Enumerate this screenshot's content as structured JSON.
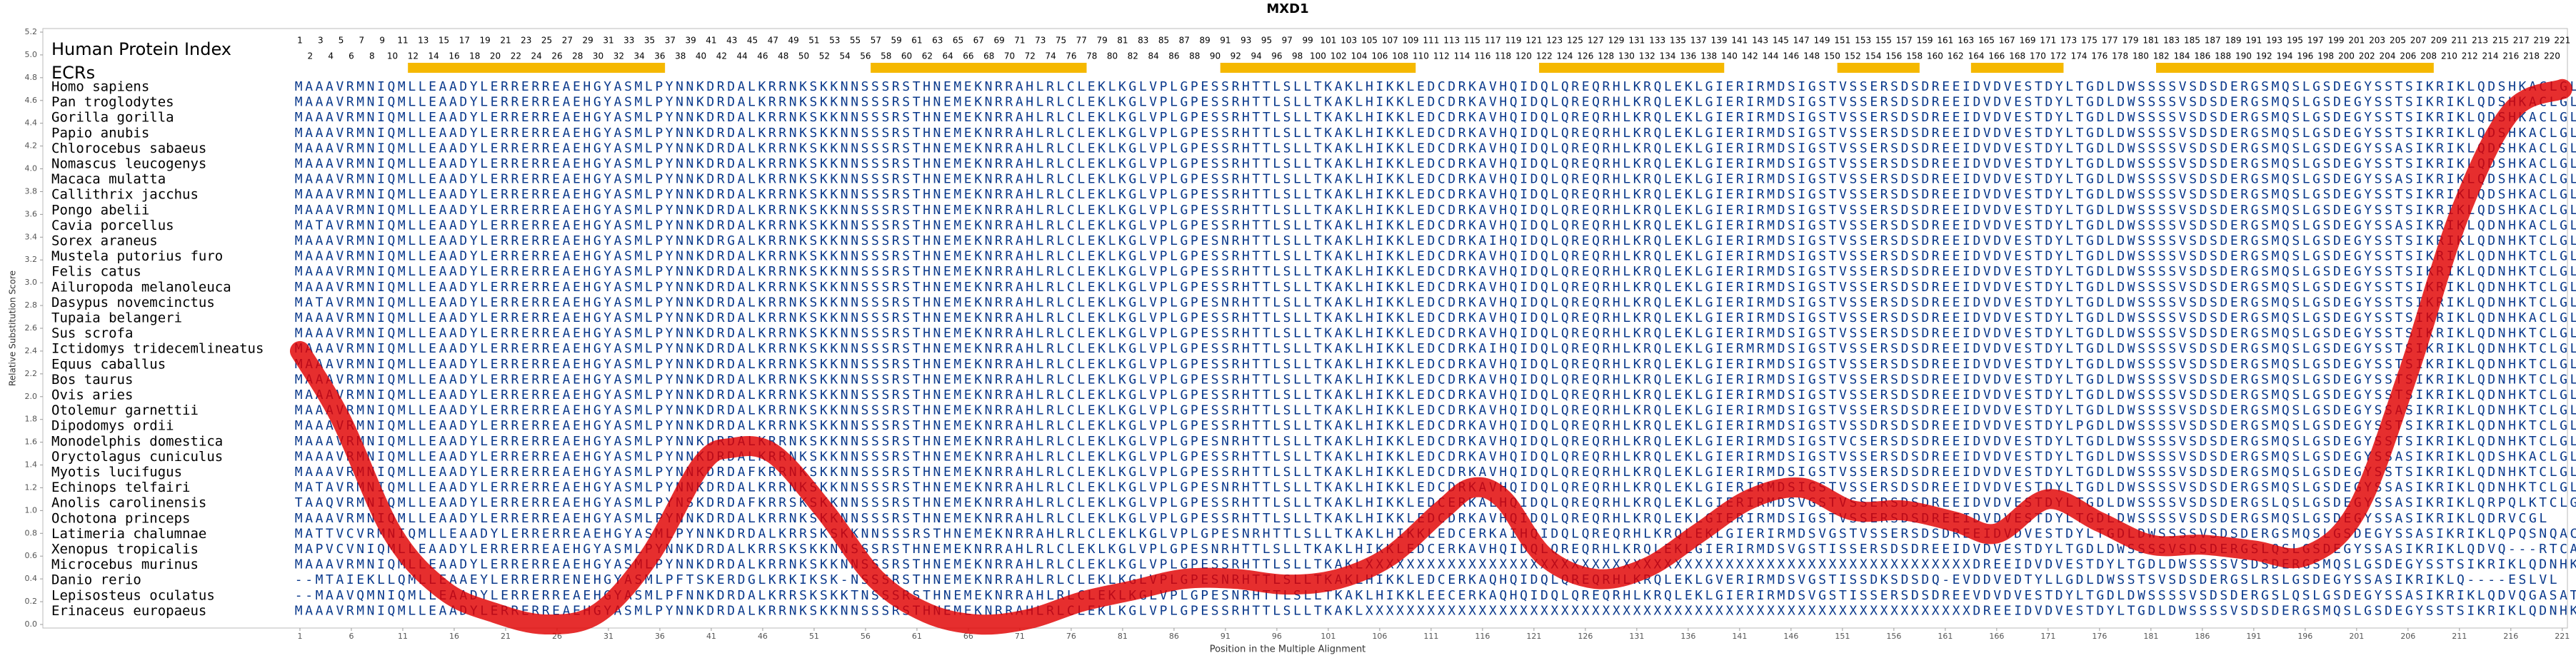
{
  "chart_data": {
    "type": "line",
    "title": "MXD1",
    "x_label": "Position in the Multiple Alignment",
    "y_label": "Relative Substitution Score",
    "xlim": [
      -24,
      221.5
    ],
    "ylim": [
      0,
      5.2
    ],
    "xticks": [
      1,
      6,
      11,
      16,
      21,
      26,
      31,
      36,
      41,
      46,
      51,
      56,
      61,
      66,
      71,
      76,
      81,
      86,
      91,
      96,
      101,
      106,
      111,
      116,
      121,
      126,
      131,
      136,
      141,
      146,
      151,
      156,
      161,
      166,
      171,
      176,
      181,
      186,
      191,
      196,
      201,
      206,
      211,
      216,
      221
    ],
    "yticks": [
      {
        "value": 0,
        "label": "0.0"
      },
      0.2,
      0.4,
      0.6,
      0.8,
      {
        "value": 1,
        "label": "1.0"
      },
      1.2,
      1.4,
      1.6,
      1.8,
      {
        "value": 2,
        "label": "2.0"
      },
      2.2,
      2.4,
      2.6,
      2.8,
      {
        "value": 3,
        "label": "3.0"
      },
      3.2,
      3.4,
      3.6,
      3.8,
      {
        "value": 4,
        "label": "4.0"
      },
      4.2,
      4.4,
      4.6,
      4.8,
      {
        "value": 5,
        "label": "5.0"
      },
      5.2
    ],
    "x": [
      1,
      5,
      10,
      15,
      20,
      25,
      30,
      35,
      40,
      43,
      47,
      52,
      57,
      62,
      67,
      72,
      77,
      82,
      87,
      92,
      97,
      102,
      107,
      112,
      115,
      118,
      122,
      127,
      132,
      137,
      142,
      147,
      152,
      157,
      162,
      166,
      171,
      176,
      181,
      186,
      191,
      196,
      201,
      206,
      211,
      216,
      221
    ],
    "series": [
      {
        "color": "#e00000",
        "values": [
          2.4,
          1.8,
          0.8,
          0.3,
          0.1,
          0.0,
          0.1,
          0.6,
          1.4,
          1.55,
          1.5,
          1.0,
          0.4,
          0.1,
          0.0,
          0.05,
          0.2,
          0.3,
          0.4,
          0.4,
          0.35,
          0.4,
          0.6,
          1.0,
          1.2,
          1.1,
          0.6,
          0.4,
          0.5,
          0.8,
          1.1,
          1.2,
          1.0,
          1.0,
          0.9,
          0.8,
          1.1,
          0.9,
          0.7,
          0.7,
          0.65,
          0.6,
          1.0,
          2.2,
          3.6,
          4.5,
          4.7
        ]
      }
    ],
    "alignment": {
      "index_title": "Human Protein Index",
      "ecr_title": "ECRs",
      "ecr_color": "#f5b800",
      "sequence_color": "#0b3a8c",
      "index": [
        1,
        2,
        3,
        4,
        5,
        6,
        7,
        8,
        9,
        10,
        11,
        12,
        13,
        14,
        15,
        16,
        17,
        18,
        19,
        20,
        21,
        22,
        23,
        24,
        25,
        26,
        27,
        28,
        29,
        30,
        31,
        32,
        33,
        34,
        35,
        36,
        37,
        38,
        39,
        40,
        41,
        42,
        43,
        44,
        45,
        46,
        47,
        48,
        49,
        50,
        51,
        52,
        53,
        54,
        55,
        56,
        57,
        58,
        59,
        60,
        61,
        62,
        63,
        64,
        65,
        66,
        67,
        68,
        69,
        70,
        71,
        72,
        73,
        74,
        75,
        76,
        77,
        78,
        79,
        80,
        81,
        82,
        83,
        84,
        85,
        86,
        87,
        88,
        89,
        90,
        91,
        92,
        93,
        94,
        95,
        96,
        97,
        98,
        99,
        100,
        101,
        102,
        103,
        104,
        105,
        106,
        107,
        108,
        109,
        110,
        111,
        112,
        113,
        114,
        115,
        116,
        117,
        118,
        119,
        120,
        121,
        122,
        123,
        124,
        125,
        126,
        127,
        128,
        129,
        130,
        131,
        132,
        133,
        134,
        135,
        136,
        137,
        138,
        139,
        140,
        141,
        142,
        143,
        144,
        145,
        146,
        147,
        148,
        149,
        150,
        151,
        152,
        153,
        154,
        155,
        156,
        157,
        158,
        159,
        160,
        161,
        162,
        163,
        164,
        165,
        166,
        167,
        168,
        169,
        170,
        171,
        172,
        173,
        174,
        175,
        176,
        177,
        178,
        179,
        180,
        181,
        182,
        183,
        184,
        185,
        186,
        187,
        188,
        189,
        190,
        191,
        192,
        193,
        194,
        195,
        196,
        197,
        198,
        199,
        200,
        201,
        202,
        203,
        204,
        205,
        206,
        207,
        208,
        209,
        210,
        211,
        212,
        213,
        214,
        215,
        216,
        217,
        218,
        219,
        220,
        221
      ],
      "ecrs": [
        [
          12,
          36
        ],
        [
          57,
          77
        ],
        [
          91,
          109
        ],
        [
          122,
          139
        ],
        [
          151,
          158
        ],
        [
          164,
          172
        ],
        [
          182,
          208
        ]
      ],
      "rows": [
        {
          "name": "Homo sapiens",
          "seq": "MAAAVRMNIQMLLEAADYLERRERREAEHGYASMLPYNNKDRDALKRRNKSKKNNSSSRSTHNEMEKNRRAHLRLCLEKLKGLVPLGPESSRHTTLSLLTKAKLHIKKLEDCDRKAVHQIDQLQREQRHLKRQLEKLGIERIRMDSIGSTVSSERSDSDREEIDVDVESTDYLTGDLDWSSSSVSDSDERGSMQSLGSDEGYSSTSIKRIKLQDSHKACLGL"
        },
        {
          "name": "Pan troglodytes",
          "seq": "MAAAVRMNIQMLLEAADYLERRERREAEHGYASMLPYNNKDRDALKRRNKSKKNNSSSRSTHNEMEKNRRAHLRLCLEKLKGLVPLGPESSRHTTLSLLTKAKLHIKKLEDCDRKAVHQIDQLQREQRHLKRQLEKLGIERIRMDSIGSTVSSERSDSDREEIDVDVESTDYLTGDLDWSSSSVSDSDERGSMQSLGSDEGYSSTSIKRIKLQDSHKACLGL"
        },
        {
          "name": "Gorilla gorilla",
          "seq": "MAAAVRMNIQMLLEAADYLERRERREAEHGYASMLPYNNKDRDALKRRNKSKKNNSSSRSTHNEMEKNRRAHLRLCLEKLKGLVPLGPESSRHTTLSLLTKAKLHIKKLEDCDRKAVHQIDQLQREQRHLKRQLEKLGIERIRMDSIGSTVSSERSDSDREEIDVDVESTDYLTGDLDWSSSSVSDSDERGSMQSLGSDEGYSSTSIKRIKLQDSHKACLGL"
        },
        {
          "name": "Papio anubis",
          "seq": "MAAAVRMNIQMLLEAADYLERRERREAEHGYASMLPYNNKDRDALKRRNKSKKNNSSSRSTHNEMEKNRRAHLRLCLEKLKGLVPLGPESSRHTTLSLLTKAKLHIKKLEDCDRKAVHQIDQLQREQRHLKRQLEKLGIERIRMDSIGSTVSSERSDSDREEIDVDVESTDYLTGDLDWSSSSVSDSDERGSMQSLGSDEGYSSTSIKRIKLQDSHKACLGL"
        },
        {
          "name": "Chlorocebus sabaeus",
          "seq": "MAAAVRMNIQMLLEAADYLERRERREAEHGYASMLPYNNKDRDALKRRNKSKKNNSSSRSTHNEMEKNRRAHLRLCLEKLKGLVPLGPESSRHTTLSLLTKAKLHIKKLEDCDRKAVHQIDQLQREQRHLKRQLEKLGIERIRMDSIGSTVSSERSDSDREEIDVDVESTDYLTGDLDWSSSSVSDSDERGSMQSLGSDEGYSSASIKRIKLQDSHKACLGL"
        },
        {
          "name": "Nomascus leucogenys",
          "seq": "MAAAVRMNIQMLLEAADYLERRERREAEHGYASMLPYNNKDRDALKRRNKSKKNNSSSRSTHNEMEKNRRAHLRLCLEKLKGLVPLGPESSRHTTLSLLTKAKLHIKKLEDCDRKAVHQIDQLQREQRHLKRQLEKLGIERIRMDSIGSTVSSERSDSDREEIDVDVESTDYLTGDLDWSSSSVSDSDERGSMQSLGSDEGYSSTSIKRIKLQDSHKACLGL"
        },
        {
          "name": "Macaca mulatta",
          "seq": "MAAAVRMNIQMLLEAADYLERRERREAEHGYASMLPYNNKDRDALKRRNKSKKNNSSSRSTHNEMEKNRRAHLRLCLEKLKGLVPLGPESSRHTTLSLLTKAKLHIKKLEDCDRKAVHQIDQLQREQRHLKRQLEKLGIERIRMDSIGSTVSSERSDSDREEIDVDVESTDYLTGDLDWSSSSVSDSDERGSMQSLGSDEGYSSASIKRIKLQDSHKACLGL"
        },
        {
          "name": "Callithrix jacchus",
          "seq": "MAAAVRMNIQMLLEAADYLERRERREAEHGYASMLPYNNKDRDALKRRNKSKKNNSSSRSTHNEMEKNRRAHLRLCLEKLKGLVPLGPESSRHTTLSLLTKAKLHIKKLEDCDRKAVHQIDQLQREQRHLKRQLEKLGIERIRMDSIGSTVSSERSDSDREEIDVDVESTDYLTGDLDWSSSSVSDSDERGSMQSLGSDEGYSSTSIKRIKLQDSHKACLGL"
        },
        {
          "name": "Pongo abelii",
          "seq": "MAAAVRMNIQMLLEAADYLERRERREAEHGYASMLPYNNKDRDALKRRNKSKKNNSSSRSTHNEMEKNRRAHLRLCLEKLKGLVPLGPESSRHTTLSLLTKAKLHIKKLEDCDRKAVHQIDQLQREQRHLKRQLEKLGIERIRMDSIGSTVSSERSDSDREEIDVDVESTDYLTGDLDWSSSSVSDSDERGSMQSLGSDEGYSSTSIKRIKLQDSHKACLGL"
        },
        {
          "name": "Cavia porcellus",
          "seq": "MATAVRMNIQMLLEAADYLERRERREAEHGYASMLPYNNKDRDALKRRNKSKKNNSSSRSTHNEMEKNRRAHLRLCLEKLKGLVPLGPESSRHTTLSLLTKAKLHIKKLEDCDRKAVHQIDQLQREQRHLKRQLEKLGIERIRMDSIGSTVSSERSDSDREEIDVDVESTDYLTGDLDWSSSSVSDSDERGSMQSLGSDEGYSSASIKRIKLQDNHKACLGL"
        },
        {
          "name": "Sorex araneus",
          "seq": "MAAAVRMNIQMLLEAADYLERRERREAEHGYASMLPYNNKDRGALKRRNKSKKNNSSSRSTHNEMEKNRRAHLRLCLEKLKGLVPLGPESNRHTTLSLLTKAKLHIKKLEDCDRKAIHQIDQLQREQRHLKRQLEKLGIERIRMDSIGSTVSSERSDSDREEIDVDVESTDYLTGDLDWSSSSVSDSDERGSMQSLGSDEGYSSTSIKRIKLQDNHKTCLGL"
        },
        {
          "name": "Mustela putorius furo",
          "seq": "MAAAVRMNIQMLLEAADYLERRERREAEHGYASMLPYNNKDRDALKRRNKSKKNNSSSRSTHNEMEKNRRAHLRLCLEKLKGLVPLGPESSRHTTLSLLTKAKLHIKKLEDCDRKAVHQIDQLQREQRHLKRQLEKLGIERIRMDSIGSTVSSERSDSDREEIDVDVESTDYLTGDLDWSSSSVSDSDERGSMQSLGSDEGYSSTSIKRIKLQDNHKTCLGL"
        },
        {
          "name": "Felis catus",
          "seq": "MAAAVRMNIQMLLEAADYLERRERREAEHGYASMLPYNNKDRDALKRRNKSKKNNSSSRSTHNEMEKNRRAHLRLCLEKLKGLVPLGPESSRHTTLSLLTKAKLHIKKLEDCDRKAVHQIDQLQREQRHLKRQLEKLGIERIRMDSIGSTVSSERSDSDREEIDVDVESTDYLTGDLDWSSSSVSDSDERGSMQSLGSDEGYSSTSIKRIKLQDNHKTCLGL"
        },
        {
          "name": "Ailuropoda melanoleuca",
          "seq": "MAAAVRMNIQMLLEAADYLERRERREAEHGYASMLPYNNKDRDALKRRNKSKKNNSSSRSTHNEMEKNRRAHLRLCLEKLKGLVPLGPESSRHTTLSLLTKAKLHIKKLEDCDRKAVHQIDQLQREQRHLKRQLEKLGIERIRMDSIGSTVSSERSDSDREEIDVDVESTDYLTGDLDWSSSSVSDSDERGSMQSLGSDEGYSSTSIKRIKLQDNHKTCLGL"
        },
        {
          "name": "Dasypus novemcinctus",
          "seq": "MATAVRMNIQMLLEAADYLERRERREAEHGYASMLPYNNKDRDALKRRNKSKKNNSSSRSTHNEMEKNRRAHLRLCLEKLKGLVPLGPESNRHTTLSLLTKAKLHIKKLEDCDRKAVHQIDQLQREQRHLKRQLEKLGIERIRMDSIGSTVSSERSDSDREEIDVDVESTDYLTGDLDWSSSSVSDSDERGSMQSLGSDEGYSSTSIKRIKLQDNHKTCLGL"
        },
        {
          "name": "Tupaia belangeri",
          "seq": "MAAAVRMNIQMLLEAADYLERRERREAEHGYASMLPYNNKDRDALKRRNKSKKNNSSSRSTHNEMEKNRRAHLRLCLEKLKGLVPLGPESSRHTTLSLLTKAKLHIKKLEDCDRKAVHQIDQLQREQRHLKRQLEKLGIERIRMDSIGSTVSSERSDSDREEIDVDVESTDYLTGDLDWSSSSVSDSDERGSMQSLGSDEGYSSTSIKRIKLQDNHKACLGL"
        },
        {
          "name": "Sus scrofa",
          "seq": "MAAAVRMNIQMLLEAADYLERRERREAEHGYASMLPYNNKDRDALKRRNKSKKNNSSSRSTHNEMEKNRRAHLRLCLEKLKGLVPLGPESSRHTTLSLLTKAKLHIKKLEDCDRKAVHQIDQLQREQRHLKRQLEKLGIERIRMDSIGSTVSSERSDSDREEIDVDVESTDYLTGDLDWSSSSVSDSDERGSMQSLGSDEGYSSTSIKRIKLQDNHKTCLGL"
        },
        {
          "name": "Ictidomys tridecemlineatus",
          "seq": "MAAAVRMNIQMLLEAADYLERRERREAEHGYASMLPYNNKDRDALKRRNKSKKNNSSSRSTHNEMEKNRRAHLRLCLEKLKGLVPLGPESSRHTTLSLLTKAKLHIKKLEDCDRKAIHQIDQLQREQRHLKRQLEKLGIERMRMDSIGSTVSSERSDSDREEIDVDVESTDYLTGDLDWSSSSVSDSDERGSMQSLGSDEGYSSTSIKRIKLQDNHKTCLGL"
        },
        {
          "name": "Equus caballus",
          "seq": "MAAAVRMNIQMLLEAADYLERRERREAEHGYASMLPYNNKDRDALKRRNKSKKNNSSSRSTHNEMEKNRRAHLRLCLEKLKGLVPLGPESSRHTTLSLLTKAKLHIKKLEDCDRKAVHQIDQLQREQRHLKRQLEKLGIERIRMDSIGSTVSSERSDSDREEIDVDVESTDYLTGDLDWSSSSVSDSDERGSMQSLGSDEGYSSTSIKRIKLQDNHKTCLGL"
        },
        {
          "name": "Bos taurus",
          "seq": "MAAAVRMNIQMLLEAADYLERRERREAEHGYASMLPYNNKDRDALKRRNKSKKNNSSSRSTHNEMEKNRRAHLRLCLEKLKGLVPLGPESSRHTTLSLLTKAKLHIKKLEDCDRKAVHQIDQLQREQRHLKRQLEKLGIERIRMDSIGSTVSSERSDSDREEIDVDVESTDYLTGDLDWSSSSVSDSDERGSMQSLGSDEGYSSTSIKRIKLQDNHKTCLGL"
        },
        {
          "name": "Ovis aries",
          "seq": "MAAAVRMNIQMLLEAADYLERRERREAEHGYASMLPYNNKDRDALKRRNKSKKNNSSSRSTHNEMEKNRRAHLRLCLEKLKGLVPLGPESSRHTTLSLLTKAKLHIKKLEDCDRKAVHQIDQLQREQRHLKRQLEKLGIERIRMDSIGSTVSSERSDSDREEIDVDVESTDYLTGDLDWSSSSVSDSDERGSMQSLGSDEGYSSTSIKRIKLQDNHKTCLGL"
        },
        {
          "name": "Otolemur garnettii",
          "seq": "MAAAVRMNIQMLLEAADYLERRERREAEHGYASMLPYNNKDRDALKRRNKSKKNNSSSRSTHNEMEKNRRAHLRLCLEKLKGLVPLGPESSRHTTLSLLTKAKLHIKKLEDCDRKAVHQIDQLQREQRHLKRQLEKLGIERIRMDSIGSTVSSERSDSDREEIDVDVESTDYLTGDLDWSSSSVSDSDERGSMQSLGSDEGYSSASIKRIKLQDNHKTCLGL"
        },
        {
          "name": "Dipodomys ordii",
          "seq": "MAAAVRMNIQMLLEAADYLERRERREAEHGYASMLPYNNKDRDALKRRNKSKKNNSSSRSTHNEMEKNRRAHLRLCLEKLKGLVPLGPESSRHTTLSLLTKAKLHIKKLEDCDRKAVHQIDQLQREQRHLKRQLEKLGIERIRMDSIGSTVSSDRSDSDREEIDVDVESTDYLPGDLDWSSSSVSDSDERGSMQSLGSDEGYSSTSIKRIKLQDNHKTCLGL"
        },
        {
          "name": "Monodelphis domestica",
          "seq": "MAAAVRMNIQMLLEAADYLERRERREAEHGYASMLPYNNKDRDALKRRNKSKKNNSSSRSTHNEMEKNRRAHLRLCLEKLKGLVPLGPESNRHTTLSLLTKAKLHIKKLEDCDRKAVHQIDQLQREQRHLKRQLEKLGIERIRMDSIGSTVCSERSDSDREEIDVDVESTDYLTGDLDWSSSSVSDSDERGSMQSLGSDEGYSSTSIKRIKLQDNHKTCLGL"
        },
        {
          "name": "Oryctolagus cuniculus",
          "seq": "MAAAVRMNIQMLLEAADYLERRERREAEHGYASMLPYNNKDRDALKRRNKSKKNNSSSRSTHNEMEKNRRAHLRLCLEKLKGLVPLGPESSRHTTLSLLTKAKLHIKKLEDCDRKAVHQIDQLQREQRHLKRQLEKLGIERIRMDSIGSTVSSERSDSDREEIDVDVESTDYLTGDLDWSSSSVSDSDERGSMQSLGSDEGYSSASIKRIKLQDSHKACLGL"
        },
        {
          "name": "Myotis lucifugus",
          "seq": "MAAAVRMNIQMLLEAADYLERRERREAEHGYASMLPYNNKDRDAFKRRNKSKKNNSSSRSTHNEMEKNRRAHLRLCLEKLKGLVPLGPESSRHTTLSLLTKAKLHIKKLEDCDRKAVHQIDQLQREQRHLKRQLEKLGIERIRMDSIGSTVSSERSDSDREEIDVDVESTDYLTGDLDWSSSSVSDSDERGSMQSLGSDEGYSSTSIKRIKLQDNHKTCLGL"
        },
        {
          "name": "Echinops telfairi",
          "seq": "MATAVRMNIQMLLEAADYLERRERREAEHGYASMLPYNNKDRDALKRRNKSKKNNSSSRSTHNEMEKNRRAHLRLCLEKLKGLVPLGPESNRHTTLSLLTKAKLHIKKLEDCDRKAVHQIDQLQREQRHLKRQLEKLGIERIRMDSIGSTVSSERSDSDREEIDVDVESTDYLTGDLDWSSSSVSDSDERGSMQSLGSDEGYSSASIKRIKLQDNHKTCLGL"
        },
        {
          "name": "Anolis carolinensis",
          "seq": "TAAQVRMNIQMLLEAADYLERRERREAEHGYASMLPYNSKDRDAFKRRSKSKKNNSSSRSTHNEMEKNRRAHLRLCLEKLKGLVPLGPESSRHTTLSLLTKAKLHIKKLEDCERKALHQIDQLQREQRHLKRQLEKLGIERIRMDSVGSTVSSERSDSDREEIDVDVESTDYLTGDLDWSSSSVSDSDERGSLQSLGSDEGYSSASIKRIKLQRPQLKTCLGL"
        },
        {
          "name": "Ochotona princeps",
          "seq": "MAAAVRMNIQMLLEAADYLERRERREAEHGYASMLPYNNKDRDALKRRNKSKKNNSSSRSTHNEMEKNRRAHLRLCLEKLKGLVPLGPESSRHTTLSLLTKAKLHIKKLEDCDRKAVHQIDQLQREQRHLKRQLEKLGIERIRMDSIGSTVSSERSDSDREEIDVDVESTDYLTGDLDWSSSSVSDSDERGSMQSLGSDEGYSSASIKRIKLQDRVCGL"
        },
        {
          "name": "Latimeria chalumnae",
          "seq": "MATTVCVRMNIQMLLEAADYLERRERREAEHGYASMLPYNNKDRDALKRRSKSKKNNSSSRSTHNEMEKNRRAHLRLCLEKLKGLVPLGPESNRHTTLSLLTKAKLHIKKLEDCERKAIHQIDQLQREQRHLKRQLEKLGIERIRMDSVGSTVSSERSDSDREEIDVDVESTDYLTGDLDWSSSSVSDSDERGSMQSLGSDEGYSSASIKRIKLQPQSNQACGS"
        },
        {
          "name": "Xenopus tropicalis",
          "seq": "MAPVCVNIQMLLEAADYLERRERREAEHGYASMLPYNNKDRDALKRRSKSKKNNSSSRSTHNEMEKNRRAHLRLCLEKLKGLVPLGPESNRHTTLSLLTKAKLHIKKLEDCERKAVHQIDQLQREQRHLKRQLEKLGIERIRMDSVGSTISSERSDSDREEIDVDVESTDYLTGDLDWSSSSVSDSDERGSLQSLGSDEGYSSASIKRIKLQDVQ---RTCAL"
        },
        {
          "name": "Microcebus murinus",
          "seq": "MAAAVRMNIQMLLEAADYLERRERREAEHGYASMLPYNNKDRDALKRRNKSKKNNSSSRSTHNEMEKNRRAHLRLCLEKLKGLVPLGPESSRHTTLSLLTKAKLXXXXXXXXXXXXXXXXXXXXXXXXXXXXXXXXXXXXXXXXXXXXXXXXXXXXXXXXXXXDREEIDVDVESTDYLTGDLDWSSSSVSDSDERGSMQSLGSDEGYSSTSIKRIKLQDNHKTCLGL"
        },
        {
          "name": "Danio rerio",
          "seq": "--MTAIEKLLQMLLEAAEYLERRERRENEHGYASMLPFTSKERDGLKRKIKSK-NSSSRSTHNEMEKNRRAHLRLCLEKLKGLVPLGPESNRHTTLSLLTKAKLHIKKLEDCERKAQHQIDQLQREQRHLKRQLEKLGVERIRMDSVGSTISSDKSDSDQ-EVDDVEDTYLLGDLDWSSTSVSDSDERGSLRSLGSDEGYSSASIKRIKLQ----ESLVL"
        },
        {
          "name": "Lepisosteus oculatus",
          "seq": "--MAAVQMNIQMLLEAADYLERRERREAEHGYASMLPFNNKDRDALKRRSKSKKTNSSSRSTHNEMEKNRRAHLRLCLEKLKGLVPLGPESNRHTTLSLLTKAKLHIKKLEECERKAQHQIDQLQREQRHLKRQLEKLGIERIRMDSVGSTISSERSDSDREEVDVDVESTDYLTGDLDWSSSSVSDSDERGSLQSLGSDEGYSSASIKRIKLQDVQGASATKTL"
        },
        {
          "name": "Erinaceus europaeus",
          "seq": "MAAAVRMNIQMLLEAADYLERRERREAEHGYASMLPYNNKDRDALKRRNKSKKNNSSSRSTHNEMEKNRRAHLRLCLEKLKGLVPLGPESSRHTTLSLLTKAKLXXXXXXXXXXXXXXXXXXXXXXXXXXXXXXXXXXXXXXXXXXXXXXXXXXXXXXXXXXXDREEIDVDVESTDYLTGDLDWSSSSVSDSDERGSMQSLGSDEGYSSTSIKRIKLQDNHKTCLGL"
        }
      ]
    }
  }
}
